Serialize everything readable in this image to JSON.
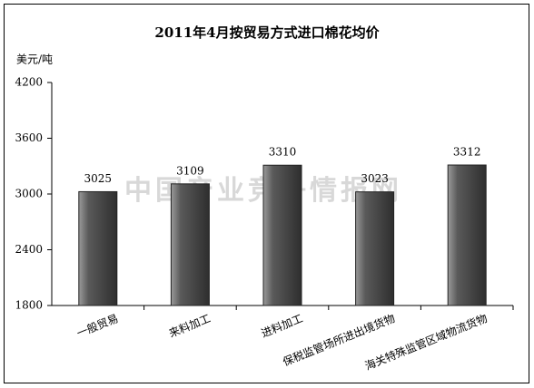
{
  "chart_data": {
    "type": "bar",
    "title": "2011年4月按贸易方式进口棉花均价",
    "y_label": "美元/吨",
    "watermark": "中国产业竞争情报网",
    "categories": [
      "一般贸易",
      "来料加工",
      "进料加工",
      "保税监管场所进出境货物",
      "海关特殊监管区域物流货物"
    ],
    "values": [
      3025,
      3109,
      3310,
      3023,
      3312
    ],
    "color": "#4a4a4a",
    "ylim": [
      1800,
      4200
    ],
    "yticks": [
      1800,
      2400,
      3000,
      3600,
      4200
    ],
    "grid": false
  }
}
